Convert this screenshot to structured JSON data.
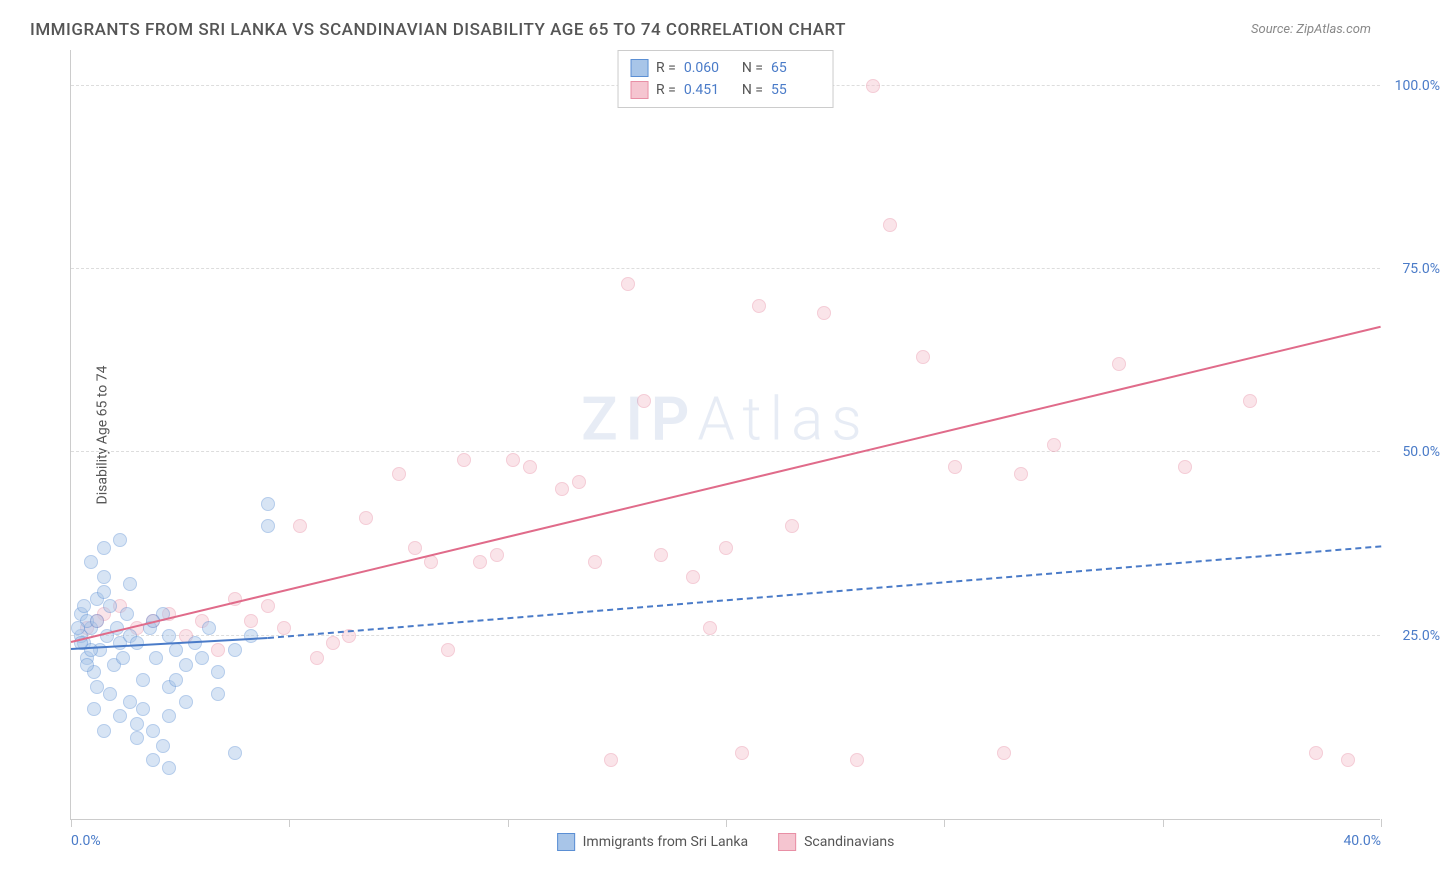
{
  "title": "IMMIGRANTS FROM SRI LANKA VS SCANDINAVIAN DISABILITY AGE 65 TO 74 CORRELATION CHART",
  "source": "Source: ZipAtlas.com",
  "y_axis_label": "Disability Age 65 to 74",
  "watermark": "ZIPAtlas",
  "chart": {
    "type": "scatter",
    "xlim": [
      0,
      40
    ],
    "ylim": [
      0,
      105
    ],
    "x_ticks": [
      0,
      6.67,
      13.33,
      20,
      26.67,
      33.33,
      40
    ],
    "x_tick_labels": {
      "0": "0.0%",
      "40": "40.0%"
    },
    "y_ticks": [
      25,
      50,
      75,
      100
    ],
    "y_tick_labels": {
      "25": "25.0%",
      "50": "50.0%",
      "75": "75.0%",
      "100": "100.0%"
    },
    "background_color": "#ffffff",
    "grid_color": "#dddddd",
    "axis_color": "#cccccc",
    "tick_label_color": "#4a7bc8",
    "axis_label_color": "#555555",
    "title_color": "#555555",
    "title_fontsize": 17,
    "label_fontsize": 14,
    "marker_size": 14,
    "marker_opacity": 0.45
  },
  "series": [
    {
      "name": "Immigrants from Sri Lanka",
      "color_fill": "#a8c5e8",
      "color_stroke": "#5b8fd4",
      "R": "0.060",
      "N": "65",
      "trendline": {
        "solid_start": [
          0,
          23
        ],
        "solid_end": [
          6,
          24.5
        ],
        "dashed_end": [
          40,
          37
        ],
        "color": "#4a7bc8"
      },
      "points": [
        [
          0.3,
          28
        ],
        [
          0.5,
          22
        ],
        [
          0.6,
          26
        ],
        [
          0.4,
          24
        ],
        [
          0.7,
          20
        ],
        [
          0.8,
          30
        ],
        [
          0.5,
          27
        ],
        [
          0.9,
          23
        ],
        [
          1.0,
          33
        ],
        [
          1.1,
          25
        ],
        [
          1.2,
          29
        ],
        [
          1.0,
          37
        ],
        [
          1.3,
          21
        ],
        [
          0.8,
          18
        ],
        [
          1.4,
          26
        ],
        [
          1.5,
          24
        ],
        [
          0.6,
          35
        ],
        [
          1.6,
          22
        ],
        [
          1.0,
          31
        ],
        [
          1.7,
          28
        ],
        [
          0.7,
          15
        ],
        [
          1.8,
          25
        ],
        [
          1.2,
          17
        ],
        [
          2.0,
          24
        ],
        [
          2.2,
          19
        ],
        [
          1.5,
          14
        ],
        [
          2.4,
          26
        ],
        [
          2.6,
          22
        ],
        [
          1.8,
          16
        ],
        [
          2.8,
          28
        ],
        [
          2.0,
          13
        ],
        [
          3.0,
          25
        ],
        [
          1.0,
          12
        ],
        [
          3.2,
          23
        ],
        [
          2.2,
          15
        ],
        [
          3.5,
          21
        ],
        [
          3.0,
          18
        ],
        [
          2.5,
          27
        ],
        [
          3.8,
          24
        ],
        [
          4.0,
          22
        ],
        [
          2.0,
          11
        ],
        [
          4.2,
          26
        ],
        [
          3.0,
          14
        ],
        [
          4.5,
          20
        ],
        [
          1.5,
          38
        ],
        [
          5.0,
          23
        ],
        [
          2.5,
          12
        ],
        [
          3.5,
          16
        ],
        [
          5.5,
          25
        ],
        [
          2.8,
          10
        ],
        [
          6.0,
          40
        ],
        [
          3.2,
          19
        ],
        [
          1.8,
          32
        ],
        [
          6.0,
          43
        ],
        [
          4.5,
          17
        ],
        [
          2.5,
          8
        ],
        [
          3.0,
          7
        ],
        [
          5.0,
          9
        ],
        [
          0.3,
          25
        ],
        [
          0.4,
          29
        ],
        [
          0.6,
          23
        ],
        [
          0.2,
          26
        ],
        [
          0.5,
          21
        ],
        [
          0.8,
          27
        ],
        [
          0.3,
          24
        ]
      ]
    },
    {
      "name": "Scandinavians",
      "color_fill": "#f5c5d0",
      "color_stroke": "#e88fa5",
      "R": "0.451",
      "N": "55",
      "trendline": {
        "solid_start": [
          0,
          24
        ],
        "solid_end": [
          40,
          67
        ],
        "color": "#e06b8a"
      },
      "points": [
        [
          0.5,
          26
        ],
        [
          1.0,
          28
        ],
        [
          1.5,
          29
        ],
        [
          2.0,
          26
        ],
        [
          0.8,
          27
        ],
        [
          3.0,
          28
        ],
        [
          4.0,
          27
        ],
        [
          5.0,
          30
        ],
        [
          3.5,
          25
        ],
        [
          6.0,
          29
        ],
        [
          7.0,
          40
        ],
        [
          5.5,
          27
        ],
        [
          8.0,
          24
        ],
        [
          6.5,
          26
        ],
        [
          9.0,
          41
        ],
        [
          10.0,
          47
        ],
        [
          8.5,
          25
        ],
        [
          11.0,
          35
        ],
        [
          12.0,
          49
        ],
        [
          10.5,
          37
        ],
        [
          13.0,
          36
        ],
        [
          14.0,
          48
        ],
        [
          11.5,
          23
        ],
        [
          15.0,
          45
        ],
        [
          16.0,
          35
        ],
        [
          13.5,
          49
        ],
        [
          17.0,
          73
        ],
        [
          18.0,
          36
        ],
        [
          15.5,
          46
        ],
        [
          19.0,
          33
        ],
        [
          17.5,
          57
        ],
        [
          20.0,
          37
        ],
        [
          21.0,
          70
        ],
        [
          22.0,
          40
        ],
        [
          19.5,
          26
        ],
        [
          23.0,
          69
        ],
        [
          20.5,
          9
        ],
        [
          24.0,
          8
        ],
        [
          25.0,
          81
        ],
        [
          26.0,
          63
        ],
        [
          24.5,
          100
        ],
        [
          27.0,
          48
        ],
        [
          28.5,
          9
        ],
        [
          29.0,
          47
        ],
        [
          30.0,
          51
        ],
        [
          32.0,
          62
        ],
        [
          34.0,
          48
        ],
        [
          36.0,
          57
        ],
        [
          38.0,
          9
        ],
        [
          39.0,
          8
        ],
        [
          4.5,
          23
        ],
        [
          7.5,
          22
        ],
        [
          2.5,
          27
        ],
        [
          12.5,
          35
        ],
        [
          16.5,
          8
        ]
      ]
    }
  ],
  "legend_top": {
    "R_label": "R =",
    "N_label": "N ="
  }
}
